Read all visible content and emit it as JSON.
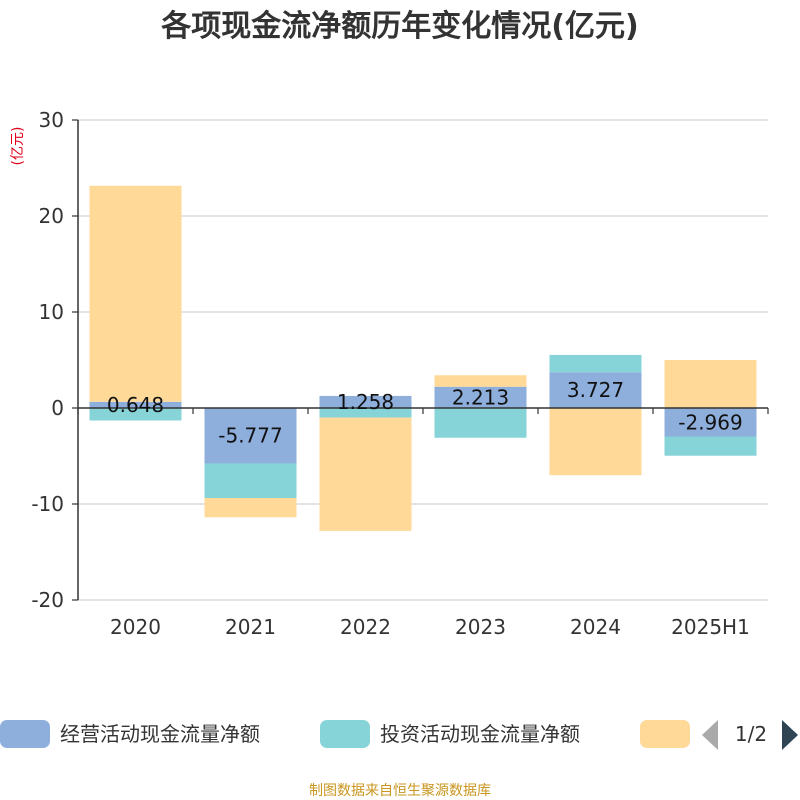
{
  "chart_data": {
    "type": "bar",
    "stacked": true,
    "title": "各项现金流净额历年变化情况(亿元)",
    "unit_label": "(亿元)",
    "categories": [
      "2020",
      "2021",
      "2022",
      "2023",
      "2024",
      "2025H1"
    ],
    "ylim": [
      -20,
      30
    ],
    "yticks": [
      30,
      20,
      10,
      0,
      -10,
      -20
    ],
    "ytick_labels": [
      "30",
      "20",
      "10",
      "0",
      "-10",
      "-20"
    ],
    "grid": true,
    "legend_position": "bottom",
    "series": [
      {
        "name": "经营活动现金流量净额",
        "color": "#8eaedb",
        "values": [
          0.648,
          -5.777,
          1.258,
          2.213,
          3.727,
          -2.969
        ],
        "labels": [
          "0.648",
          "-5.777",
          "1.258",
          "2.213",
          "3.727",
          "-2.969"
        ]
      },
      {
        "name": "投资活动现金流量净额",
        "color": "#86d4d8",
        "values": [
          -1.3,
          -3.6,
          -1.0,
          -3.1,
          1.8,
          -2.0
        ]
      },
      {
        "name": "",
        "color": "#fed998",
        "values": [
          22.5,
          -2.0,
          -11.8,
          1.2,
          -7.0,
          5.0
        ]
      }
    ]
  },
  "legend": {
    "items": [
      "经营活动现金流量净额",
      "投资活动现金流量净额",
      ""
    ],
    "page_indicator": "1/2",
    "prev_icon": "triangle-left-icon",
    "next_icon": "triangle-right-icon"
  },
  "source": "制图数据来自恒生聚源数据库"
}
